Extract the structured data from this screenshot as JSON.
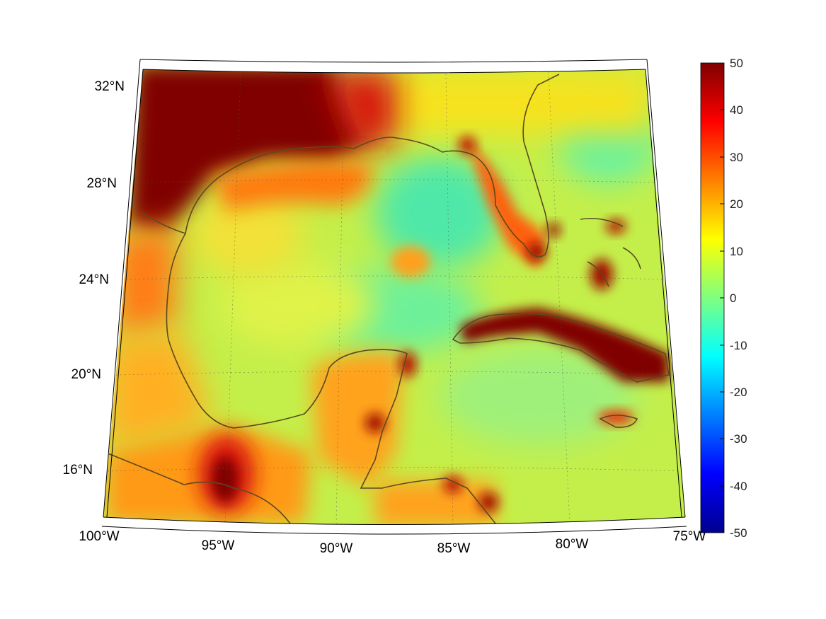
{
  "map": {
    "projection": "conic (lat/lon grid)",
    "lat_labels": [
      "32°N",
      "28°N",
      "24°N",
      "20°N",
      "16°N"
    ],
    "lon_labels": [
      "100°W",
      "95°W",
      "90°W",
      "85°W",
      "80°W",
      "75°W"
    ],
    "coastline_color": "#5b4a1f",
    "grid": "dotted"
  },
  "colorbar": {
    "colormap": "jet",
    "ticks": [
      "50",
      "40",
      "30",
      "20",
      "10",
      "0",
      "-10",
      "-20",
      "-30",
      "-40",
      "-50"
    ],
    "min": -50,
    "max": 50
  },
  "colors": {
    "dark_red": "#800000",
    "red": "#ff2000",
    "orange": "#ff9a00",
    "yellow": "#ffff00",
    "green": "#7fff7f",
    "cyan": "#00ffff",
    "blue": "#0000ff",
    "dark_blue": "#00008f"
  }
}
